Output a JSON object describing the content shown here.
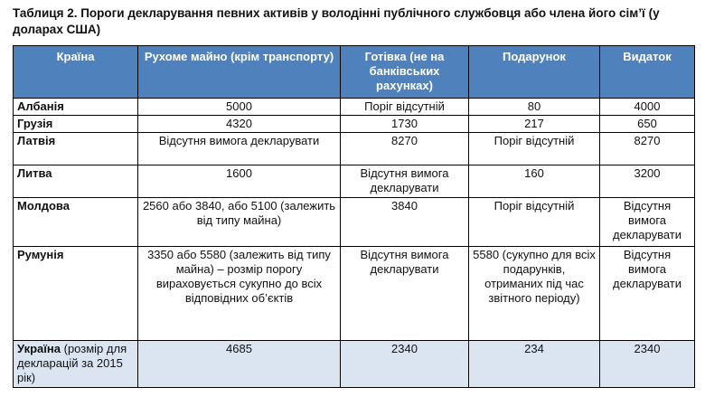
{
  "caption": "Таблиця 2. Пороги декларування певних активів у володінні публічного службовця або члена його сім’ї (у доларах США)",
  "headers": [
    "Країна",
    "Рухоме майно (крім транспорту)",
    "Готівка (не на банківських рахунках)",
    "Подарунок",
    "Видаток"
  ],
  "rows": [
    {
      "country": "Албанія",
      "movable": "5000",
      "cash": "Поріг відсутній",
      "gift": "80",
      "expense": "4000"
    },
    {
      "country": "Грузія",
      "movable": "4320",
      "cash": "1730",
      "gift": "217",
      "expense": "650"
    },
    {
      "country": "Латвія",
      "movable": "Відсутня вимога декларувати",
      "cash": "8270",
      "gift": "Поріг відсутній",
      "expense": "8270"
    },
    {
      "country": "Литва",
      "movable": "1600",
      "cash": "Відсутня вимога декларувати",
      "gift": "160",
      "expense": "3200"
    },
    {
      "country": "Молдова",
      "movable": "2560 або 3840, або 5100 (залежить від типу майна)",
      "cash": "3840",
      "gift": "Поріг відсутній",
      "expense": "Відсутня вимога декларувати"
    },
    {
      "country": "Румунія",
      "movable": "3350 або 5580 (залежить від типу майна) – розмір порогу вираховується сукупно до всіх відповідних об’єктів",
      "cash": "Відсутня вимога декларувати",
      "gift": "5580 (сукупно для всіх подарунків, отриманих під час звітного періоду)",
      "expense": "Відсутня вимога декларувати"
    },
    {
      "country": "Україна",
      "note": " (розмір для декларацій за 2015 рік)",
      "movable": "4685",
      "cash": "2340",
      "gift": "234",
      "expense": "2340"
    }
  ]
}
